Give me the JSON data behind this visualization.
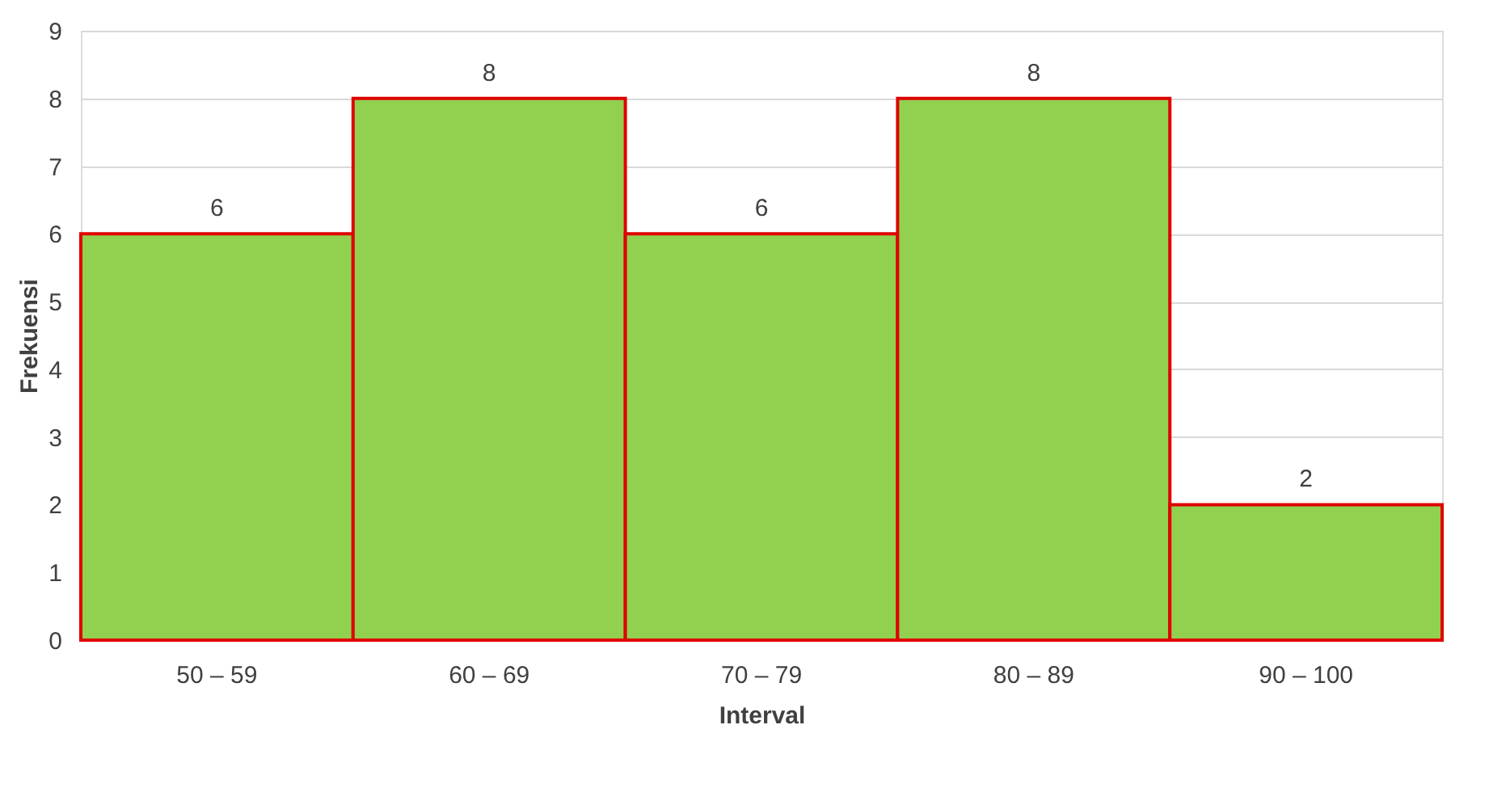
{
  "chart_data": {
    "type": "bar",
    "xlabel": "Interval",
    "ylabel": "Frekuensi",
    "categories": [
      "50 – 59",
      "60 – 69",
      "70 – 79",
      "80 – 89",
      "90 – 100"
    ],
    "values": [
      6,
      8,
      6,
      8,
      2
    ],
    "color": "#92d050",
    "ylim": [
      0,
      9
    ],
    "yticks": [
      0,
      1,
      2,
      3,
      4,
      5,
      6,
      7,
      8,
      9
    ],
    "grid": "y",
    "data_labels": true
  }
}
